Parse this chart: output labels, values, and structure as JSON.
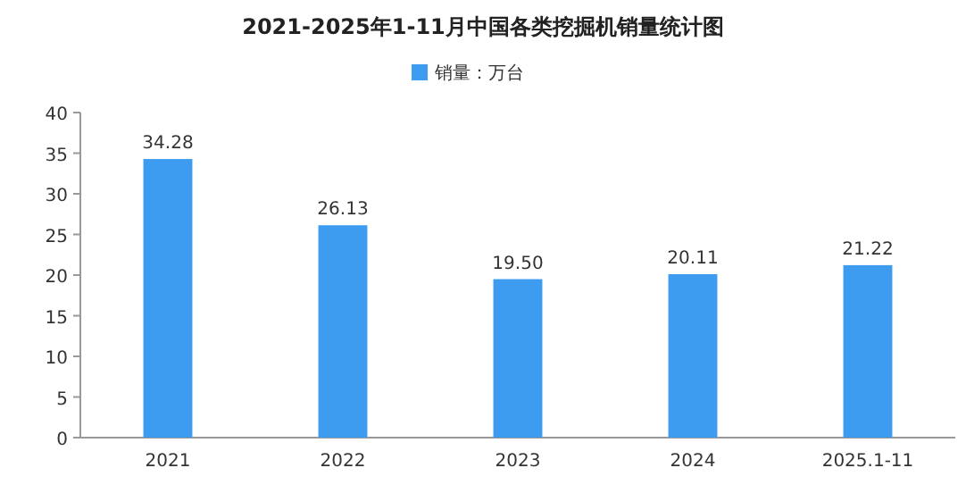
{
  "chart_data": {
    "type": "bar",
    "title": "2021-2025年1-11月中国各类挖掘机销量统计图",
    "categories": [
      "2021",
      "2022",
      "2023",
      "2024",
      "2025.1-11"
    ],
    "series": [
      {
        "name": "销量：万台",
        "color": "#3d9cf0",
        "values": [
          34.28,
          26.13,
          19.5,
          20.11,
          21.22
        ],
        "value_labels": [
          "34.28",
          "26.13",
          "19.50",
          "20.11",
          "21.22"
        ]
      }
    ],
    "ylim": [
      0,
      40
    ],
    "yticks": [
      0,
      5,
      10,
      15,
      20,
      25,
      30,
      35,
      40
    ],
    "legend": "top",
    "grid": false
  }
}
